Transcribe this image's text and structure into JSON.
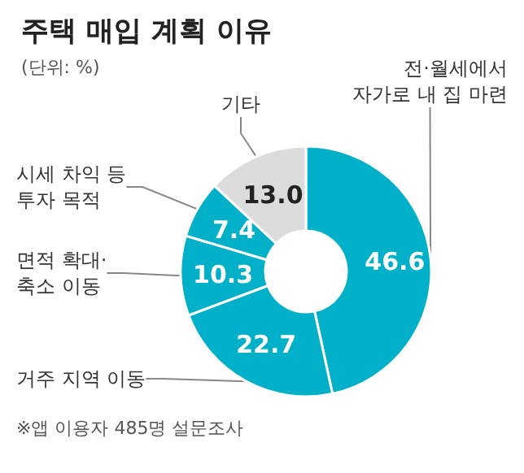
{
  "chart_data": {
    "type": "donut",
    "title": "주택 매입 계획 이유",
    "subtitle": "(단위: %)",
    "categories": [
      "전·월세에서\n자가로 내 집 마련",
      "거주 지역 이동",
      "면적 확대·\n축소 이동",
      "시세 차익 등\n투자 목적",
      "기타"
    ],
    "values": [
      46.6,
      22.7,
      10.3,
      7.4,
      13.0
    ],
    "colors": [
      "#00b0c8",
      "#00b0c8",
      "#00b0c8",
      "#00b0c8",
      "#dcdcdc"
    ],
    "value_labels": [
      "46.6",
      "22.7",
      "10.3",
      "7.4",
      "13.0"
    ],
    "legend": false,
    "annotations": [
      "※앱 이용자 485명 설문조사"
    ]
  }
}
